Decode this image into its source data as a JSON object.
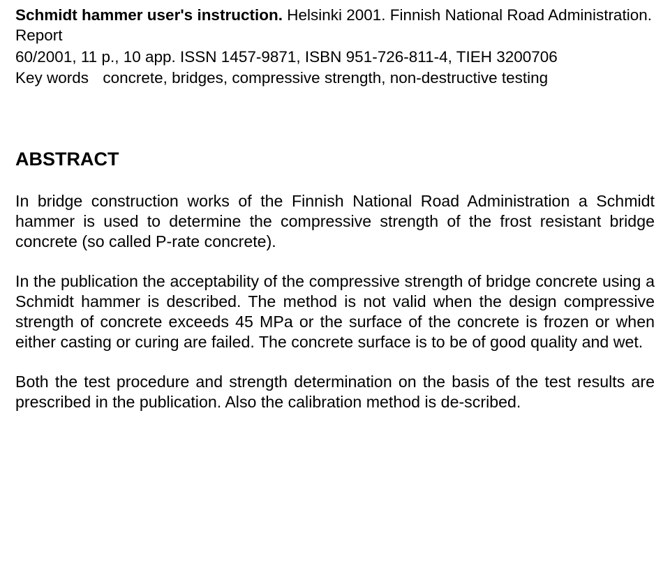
{
  "header": {
    "title_bold": "Schmidt hammer user's instruction.",
    "rest_line1": " Helsinki 2001. Finnish National Road Administration. Report",
    "line2": "60/2001, 11 p., 10 app. ISSN 1457-9871, ISBN 951-726-811-4, TIEH 3200706"
  },
  "keywords": {
    "label": "Key words",
    "values": "concrete, bridges, compressive strength, non-destructive testing"
  },
  "abstract": {
    "heading": "ABSTRACT",
    "p1": "In bridge construction works of the Finnish National Road Administration a Schmidt hammer is used to determine the compressive strength of the frost resistant bridge concrete (so called P-rate concrete).",
    "p2": "In the publication the acceptability of the compressive strength of bridge concrete using a Schmidt hammer is described. The method is not valid when the design compressive strength of concrete exceeds 45 MPa or the surface of the concrete is frozen or when either casting or curing are failed. The concrete surface is to be of good quality and wet.",
    "p3": "Both the test procedure and strength determination on the basis of the test results are prescribed in the publication. Also the calibration method is de-scribed."
  }
}
